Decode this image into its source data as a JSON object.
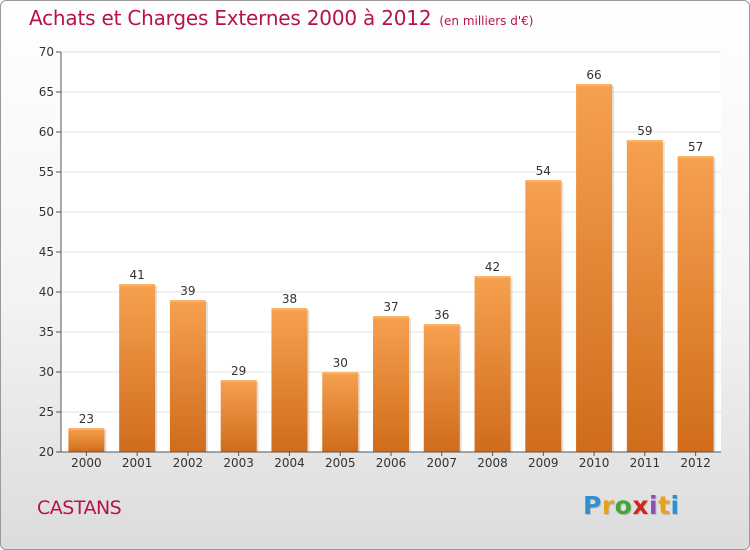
{
  "header": {
    "title": "Achats et Charges Externes 2000 à 2012",
    "subtitle": "(en milliers d'€)"
  },
  "footer": {
    "commune": "CASTANS",
    "logo_text": "Proxiti"
  },
  "colors": {
    "title": "#b5124e",
    "bar_top": "#f6a14e",
    "bar_bottom": "#d06c1c",
    "gridline": "#e3e3e3",
    "axis": "#555555"
  },
  "chart_data": {
    "type": "bar",
    "title": "Achats et Charges Externes 2000 à 2012",
    "subtitle": "(en milliers d'€)",
    "xlabel": "",
    "ylabel": "",
    "categories": [
      "2000",
      "2001",
      "2002",
      "2003",
      "2004",
      "2005",
      "2006",
      "2007",
      "2008",
      "2009",
      "2010",
      "2011",
      "2012"
    ],
    "values": [
      23,
      41,
      39,
      29,
      38,
      30,
      37,
      36,
      42,
      54,
      66,
      59,
      57
    ],
    "ylim": [
      20,
      70
    ],
    "yticks": [
      20,
      25,
      30,
      35,
      40,
      45,
      50,
      55,
      60,
      65,
      70
    ],
    "grid": true,
    "data_labels": true
  }
}
